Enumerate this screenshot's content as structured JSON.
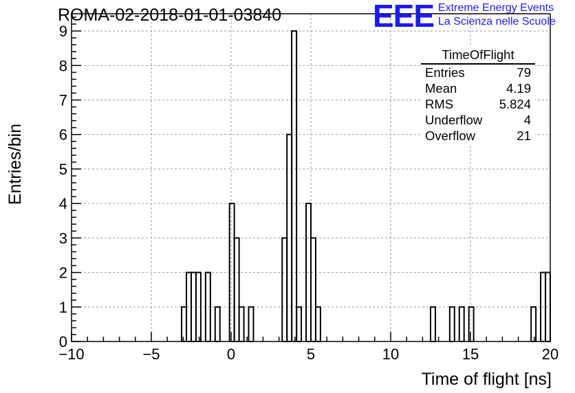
{
  "title": "ROMA-02-2018-01-01-03840",
  "logo": {
    "mark": "EEE",
    "line1": "Extreme Energy Events",
    "line2": "La Scienza nelle Scuole",
    "color": "#1a1aff"
  },
  "stats": {
    "title": "TimeOfFlight",
    "rows": [
      {
        "label": "Entries",
        "value": "79"
      },
      {
        "label": "Mean",
        "value": "4.19"
      },
      {
        "label": "RMS",
        "value": "5.824"
      },
      {
        "label": "Underflow",
        "value": "4"
      },
      {
        "label": "Overflow",
        "value": "21"
      }
    ]
  },
  "chart_data": {
    "type": "bar",
    "histogram": true,
    "xlabel": "Time of flight [ns]",
    "ylabel": "Entries/bin",
    "xlim": [
      -10,
      20
    ],
    "ylim": [
      0,
      9.5
    ],
    "xticks": [
      -10,
      -5,
      0,
      5,
      10,
      15,
      20
    ],
    "xtick_labels": [
      "−10",
      "−5",
      "0",
      "5",
      "10",
      "15",
      "20"
    ],
    "yticks": [
      0,
      1,
      2,
      3,
      4,
      5,
      6,
      7,
      8,
      9
    ],
    "ytick_labels": [
      "0",
      "1",
      "2",
      "3",
      "4",
      "5",
      "6",
      "7",
      "8",
      "9"
    ],
    "grid": true,
    "bin_width": 0.3,
    "bins": [
      {
        "x": -3.1,
        "y": 1
      },
      {
        "x": -2.8,
        "y": 2
      },
      {
        "x": -2.5,
        "y": 2
      },
      {
        "x": -2.2,
        "y": 2
      },
      {
        "x": -1.6,
        "y": 2
      },
      {
        "x": -1.0,
        "y": 1
      },
      {
        "x": -0.1,
        "y": 4
      },
      {
        "x": 0.2,
        "y": 3
      },
      {
        "x": 0.5,
        "y": 1
      },
      {
        "x": 1.1,
        "y": 1
      },
      {
        "x": 3.2,
        "y": 3
      },
      {
        "x": 3.5,
        "y": 6
      },
      {
        "x": 3.8,
        "y": 9
      },
      {
        "x": 4.1,
        "y": 1
      },
      {
        "x": 4.7,
        "y": 4
      },
      {
        "x": 5.0,
        "y": 3
      },
      {
        "x": 5.3,
        "y": 1
      },
      {
        "x": 12.5,
        "y": 1
      },
      {
        "x": 13.7,
        "y": 1
      },
      {
        "x": 14.3,
        "y": 1
      },
      {
        "x": 14.9,
        "y": 1
      },
      {
        "x": 18.8,
        "y": 1
      },
      {
        "x": 19.4,
        "y": 2
      },
      {
        "x": 19.7,
        "y": 2
      }
    ]
  }
}
